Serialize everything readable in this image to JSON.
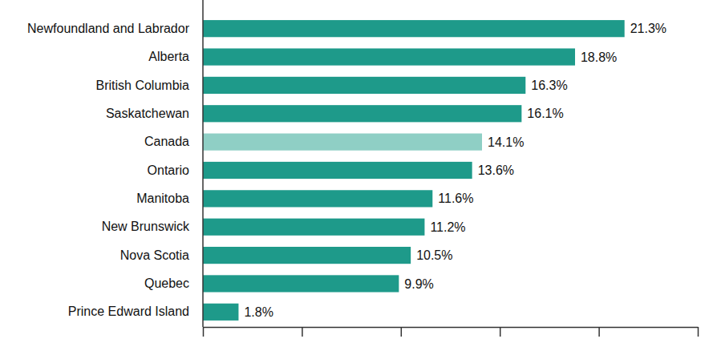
{
  "chart_data": {
    "type": "bar",
    "orientation": "horizontal",
    "categories": [
      "Newfoundland and Labrador",
      "Alberta",
      "British Columbia",
      "Saskatchewan",
      "Canada",
      "Ontario",
      "Manitoba",
      "New Brunswick",
      "Nova Scotia",
      "Quebec",
      "Prince Edward Island"
    ],
    "values": [
      21.3,
      18.8,
      16.3,
      16.1,
      14.1,
      13.6,
      11.6,
      11.2,
      10.5,
      9.9,
      1.8
    ],
    "value_labels": [
      "21.3%",
      "18.8%",
      "16.3%",
      "16.1%",
      "14.1%",
      "13.6%",
      "11.6%",
      "11.2%",
      "10.5%",
      "9.9%",
      "1.8%"
    ],
    "colors": [
      "#1e9a8a",
      "#1e9a8a",
      "#1e9a8a",
      "#1e9a8a",
      "#8fcfc5",
      "#1e9a8a",
      "#1e9a8a",
      "#1e9a8a",
      "#1e9a8a",
      "#1e9a8a",
      "#1e9a8a"
    ],
    "xlim": [
      0,
      25
    ],
    "xticks": [
      0,
      5,
      10,
      15,
      20,
      25
    ],
    "data_labels": true,
    "tick_labels": false
  }
}
